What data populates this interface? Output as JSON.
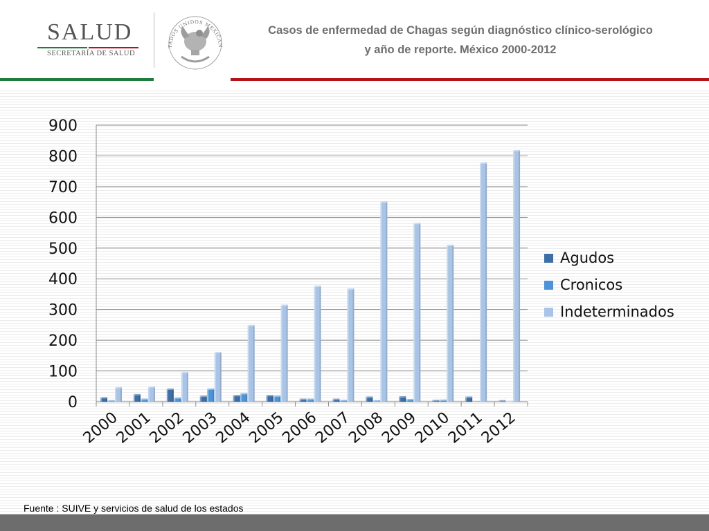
{
  "header": {
    "logo_title": "SALUD",
    "logo_subtitle": "SECRETARÍA DE SALUD",
    "seal_text": "ESTADOS UNIDOS MEXICANOS",
    "title_line1": "Casos de enfermedad de Chagas según diagnóstico clínico-serológico",
    "title_line2": "y año de reporte.  México 2000-2012"
  },
  "colors": {
    "green": "#1e7d3a",
    "red": "#b5121b",
    "agudos": "#3d6fa6",
    "cronicos": "#4c94d6",
    "indeterminados": "#a9c4e6"
  },
  "chart_data": {
    "type": "bar",
    "title": "Casos de enfermedad de Chagas según diagnóstico clínico-serológico y año de reporte. México 2000-2012",
    "categories": [
      "2000",
      "2001",
      "2002",
      "2003",
      "2004",
      "2005",
      "2006",
      "2007",
      "2008",
      "2009",
      "2010",
      "2011",
      "2012"
    ],
    "series": [
      {
        "name": "Agudos",
        "values": [
          15,
          25,
          43,
          20,
          22,
          22,
          10,
          10,
          17,
          18,
          6,
          17,
          5
        ]
      },
      {
        "name": "Cronicos",
        "values": [
          5,
          10,
          14,
          43,
          28,
          20,
          10,
          6,
          5,
          9,
          7,
          2,
          1
        ]
      },
      {
        "name": "Indeterminados",
        "values": [
          48,
          50,
          97,
          162,
          250,
          316,
          378,
          369,
          652,
          582,
          511,
          779,
          819
        ]
      }
    ],
    "yticks": [
      "0",
      "100",
      "200",
      "300",
      "400",
      "500",
      "600",
      "700",
      "800",
      "900"
    ],
    "ylim": [
      0,
      900
    ],
    "xlabel": "",
    "ylabel": "",
    "grid": true,
    "legend_position": "right"
  },
  "footer": {
    "source": "Fuente : SUIVE y servicios de salud de los estados"
  }
}
